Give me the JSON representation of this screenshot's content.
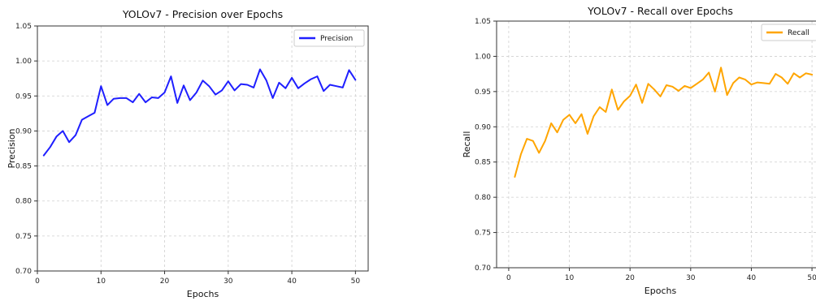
{
  "chart_data": [
    {
      "type": "line",
      "title": "YOLOv7 - Precision over Epochs",
      "xlabel": "Epochs",
      "ylabel": "Precision",
      "xlim": [
        0,
        52
      ],
      "ylim": [
        0.7,
        1.05
      ],
      "xticks": [
        "0",
        "10",
        "20",
        "30",
        "40",
        "50"
      ],
      "yticks": [
        "0.70",
        "0.75",
        "0.80",
        "0.85",
        "0.90",
        "0.95",
        "1.00",
        "1.05"
      ],
      "grid": true,
      "legend": "top-right",
      "series": [
        {
          "name": "Precision",
          "color": "#1f1fff",
          "x": [
            1,
            2,
            3,
            4,
            5,
            6,
            7,
            8,
            9,
            10,
            11,
            12,
            13,
            14,
            15,
            16,
            17,
            18,
            19,
            20,
            21,
            22,
            23,
            24,
            25,
            26,
            27,
            28,
            29,
            30,
            31,
            32,
            33,
            34,
            35,
            36,
            37,
            38,
            39,
            40,
            41,
            42,
            43,
            44,
            45,
            46,
            47,
            48,
            49,
            50
          ],
          "y": [
            0.865,
            0.877,
            0.892,
            0.9,
            0.884,
            0.894,
            0.916,
            0.921,
            0.926,
            0.964,
            0.937,
            0.946,
            0.947,
            0.947,
            0.941,
            0.953,
            0.941,
            0.948,
            0.947,
            0.955,
            0.978,
            0.94,
            0.965,
            0.944,
            0.955,
            0.972,
            0.964,
            0.952,
            0.958,
            0.971,
            0.958,
            0.967,
            0.966,
            0.962,
            0.988,
            0.972,
            0.947,
            0.969,
            0.961,
            0.976,
            0.961,
            0.968,
            0.974,
            0.978,
            0.957,
            0.966,
            0.964,
            0.962,
            0.987,
            0.973
          ]
        }
      ]
    },
    {
      "type": "line",
      "title": "YOLOv7 - Recall over Epochs",
      "xlabel": "Epochs",
      "ylabel": "Recall",
      "xlim": [
        -2,
        52
      ],
      "ylim": [
        0.7,
        1.05
      ],
      "xticks": [
        "0",
        "10",
        "20",
        "30",
        "40",
        "50"
      ],
      "yticks": [
        "0.70",
        "0.75",
        "0.80",
        "0.85",
        "0.90",
        "0.95",
        "1.00",
        "1.05"
      ],
      "grid": true,
      "legend": "top-right",
      "series": [
        {
          "name": "Recall",
          "color": "#ffa500",
          "x": [
            1,
            2,
            3,
            4,
            5,
            6,
            7,
            8,
            9,
            10,
            11,
            12,
            13,
            14,
            15,
            16,
            17,
            18,
            19,
            20,
            21,
            22,
            23,
            24,
            25,
            26,
            27,
            28,
            29,
            30,
            31,
            32,
            33,
            34,
            35,
            36,
            37,
            38,
            39,
            40,
            41,
            42,
            43,
            44,
            45,
            46,
            47,
            48,
            49,
            50
          ],
          "y": [
            0.829,
            0.861,
            0.883,
            0.88,
            0.863,
            0.88,
            0.905,
            0.892,
            0.91,
            0.917,
            0.905,
            0.918,
            0.89,
            0.915,
            0.928,
            0.921,
            0.953,
            0.924,
            0.936,
            0.944,
            0.96,
            0.934,
            0.961,
            0.953,
            0.943,
            0.959,
            0.957,
            0.951,
            0.958,
            0.955,
            0.961,
            0.967,
            0.977,
            0.95,
            0.984,
            0.945,
            0.962,
            0.97,
            0.967,
            0.96,
            0.963,
            0.962,
            0.961,
            0.975,
            0.97,
            0.961,
            0.976,
            0.97,
            0.976,
            0.974
          ]
        }
      ]
    }
  ]
}
